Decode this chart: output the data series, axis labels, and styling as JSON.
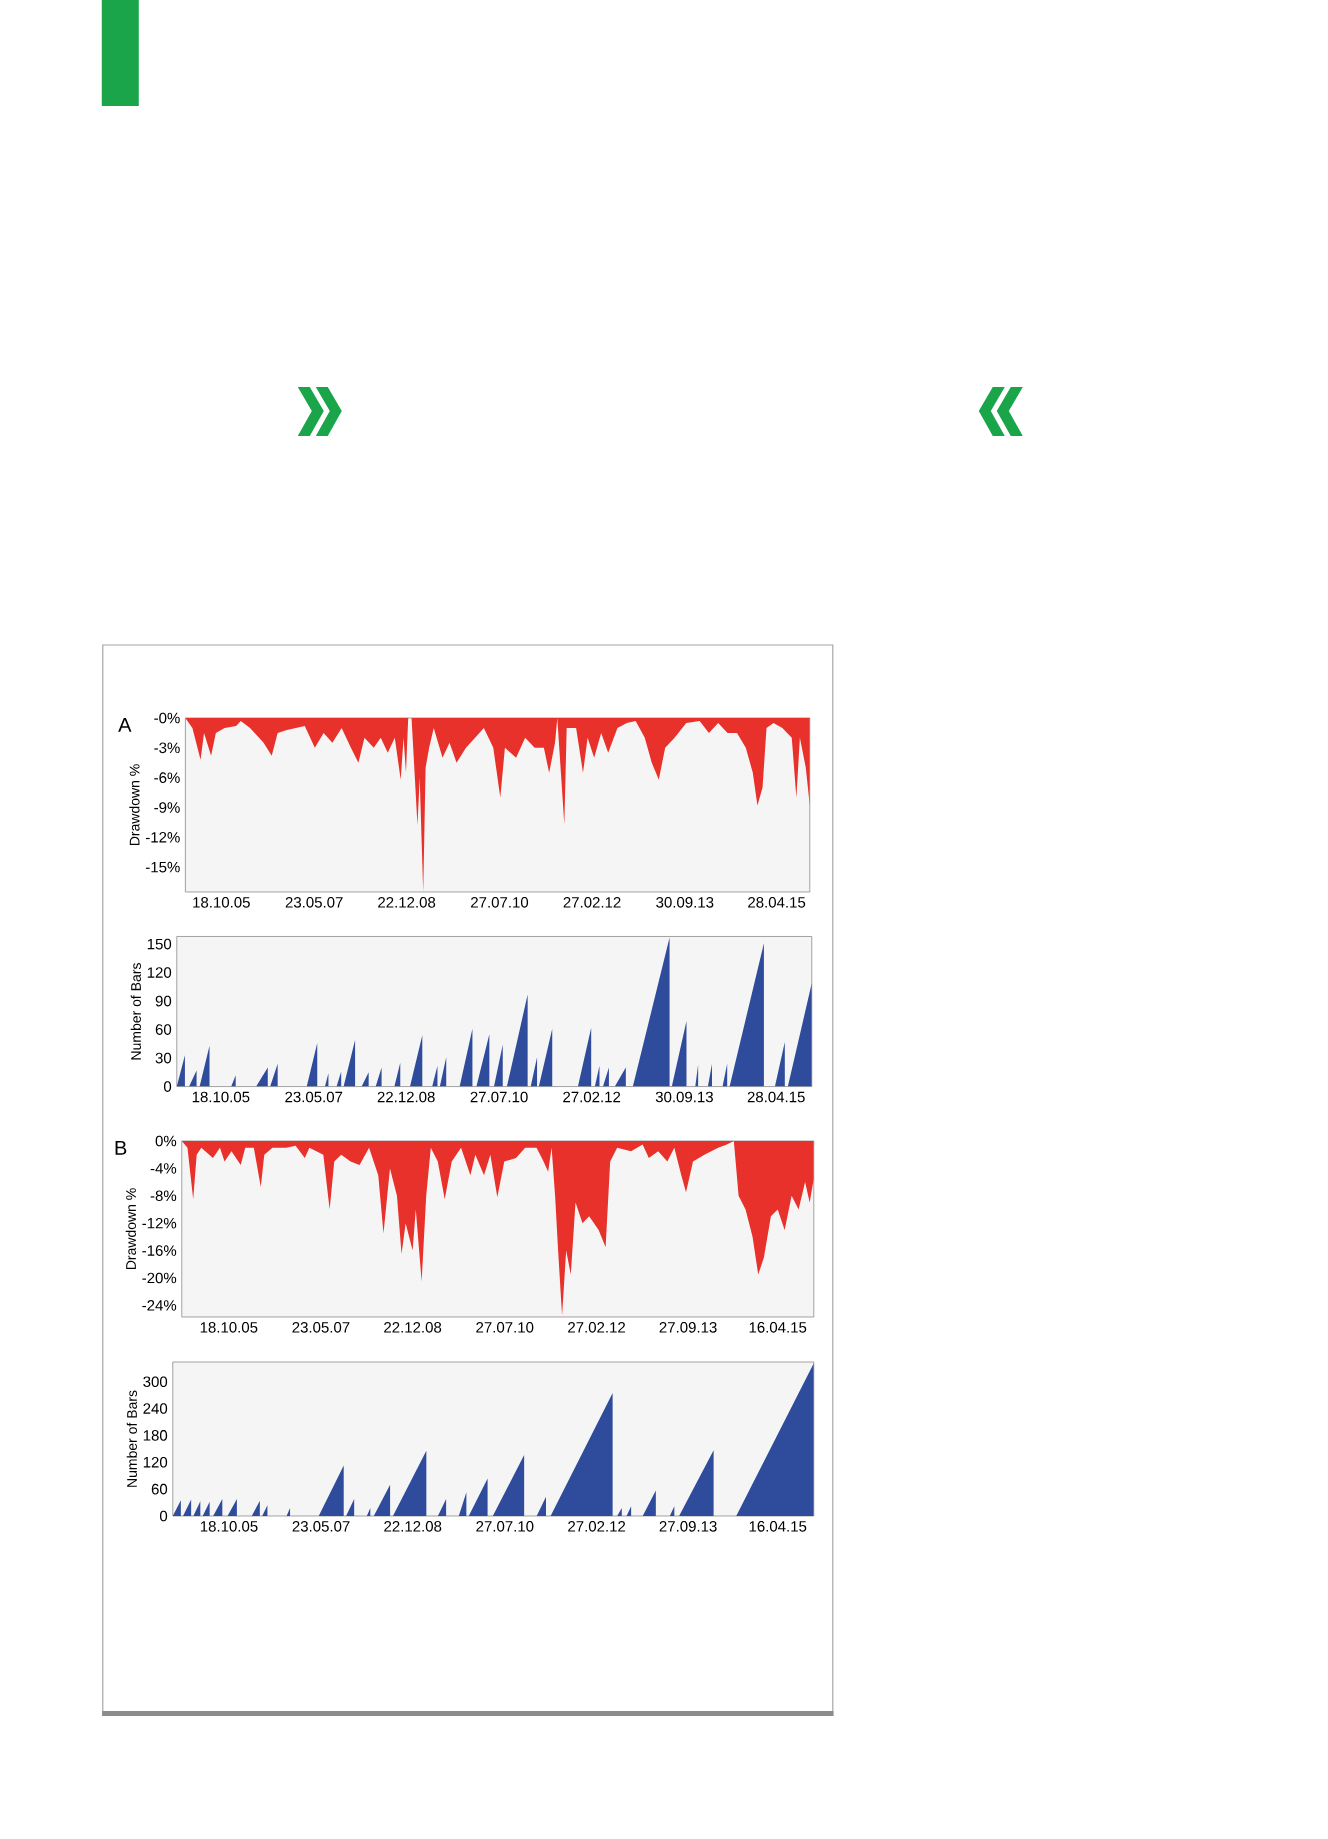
{
  "chart_data": [
    {
      "type": "area",
      "ylabel": "Drawdown %",
      "annotations": [
        "A"
      ],
      "color": "#e8312a",
      "xlim": [
        "2005-03-07",
        "2015-11-22"
      ],
      "ylim": [
        -17.5,
        0
      ],
      "xticks": [
        {
          "value": "2005-10-18",
          "label": "18.10.05"
        },
        {
          "value": "2007-05-23",
          "label": "23.05.07"
        },
        {
          "value": "2008-12-22",
          "label": "22.12.08"
        },
        {
          "value": "2010-07-27",
          "label": "27.07.10"
        },
        {
          "value": "2012-02-27",
          "label": "27.02.12"
        },
        {
          "value": "2013-09-30",
          "label": "30.09.13"
        },
        {
          "value": "2015-04-28",
          "label": "28.04.15"
        }
      ],
      "yticks": [
        {
          "value": 0,
          "label": "-0%"
        },
        {
          "value": -3,
          "label": "-3%"
        },
        {
          "value": -6,
          "label": "-6%"
        },
        {
          "value": -9,
          "label": "-9%"
        },
        {
          "value": -12,
          "label": "-12%"
        },
        {
          "value": -15,
          "label": "-15%"
        }
      ],
      "x": [
        "2005-03-07",
        "2005-04-20",
        "2005-06-10",
        "2005-07-02",
        "2005-08-15",
        "2005-09-14",
        "2005-11-08",
        "2006-01-19",
        "2006-02-17",
        "2006-04-16",
        "2006-07-10",
        "2006-08-30",
        "2006-10-06",
        "2006-12-03",
        "2007-03-25",
        "2007-05-27",
        "2007-07-21",
        "2007-09-14",
        "2007-11-11",
        "2008-01-08",
        "2008-02-24",
        "2008-04-02",
        "2008-05-30",
        "2008-07-13",
        "2008-08-26",
        "2008-10-09",
        "2008-11-15",
        "2008-12-03",
        "2008-12-18",
        "2009-01-01",
        "2009-01-22",
        "2009-02-28",
        "2009-03-14",
        "2009-04-05",
        "2009-04-20",
        "2009-05-12",
        "2009-06-10",
        "2009-08-04",
        "2009-09-17",
        "2009-10-31",
        "2009-12-29",
        "2010-02-24",
        "2010-04-20",
        "2010-06-18",
        "2010-08-01",
        "2010-08-30",
        "2010-11-08",
        "2011-01-04",
        "2011-03-04",
        "2011-05-01",
        "2011-06-03",
        "2011-07-10",
        "2011-07-24",
        "2011-09-06",
        "2011-09-21",
        "2011-11-19",
        "2012-01-01",
        "2012-01-30",
        "2012-03-11",
        "2012-04-24",
        "2012-06-07",
        "2012-08-04",
        "2012-10-02",
        "2012-11-26",
        "2013-01-22",
        "2013-03-07",
        "2013-04-20",
        "2013-05-30",
        "2013-07-28",
        "2013-10-09",
        "2014-01-01",
        "2014-02-28",
        "2014-04-27",
        "2014-06-25",
        "2014-08-23",
        "2014-10-17",
        "2014-11-30",
        "2014-12-29",
        "2015-01-30",
        "2015-02-24",
        "2015-04-09",
        "2015-06-03",
        "2015-08-01",
        "2015-08-30",
        "2015-09-21",
        "2015-10-28",
        "2015-11-22"
      ],
      "values": [
        0,
        -1,
        -4.2,
        -1.5,
        -3.8,
        -1.5,
        -1,
        -0.8,
        -0.3,
        -1,
        -2.5,
        -3.8,
        -1.5,
        -1.2,
        -0.8,
        -3,
        -1.5,
        -2.5,
        -1,
        -3,
        -4.5,
        -2,
        -3,
        -2,
        -3.5,
        -2,
        -6.2,
        -2,
        -5.5,
        0,
        0,
        -10.8,
        -6,
        -17.5,
        -5,
        -3,
        -1,
        -4,
        -2.5,
        -4.5,
        -3,
        -2,
        -1,
        -3,
        -8,
        -3,
        -4,
        -2,
        -3,
        -3,
        -5.5,
        -2.5,
        0,
        -10.7,
        -1,
        -1,
        -5.5,
        -2,
        -4,
        -1.5,
        -3.5,
        -1,
        -0.5,
        -0.3,
        -2,
        -4.5,
        -6.2,
        -3,
        -2,
        -0.5,
        -0.3,
        -1.5,
        -0.5,
        -1.5,
        -1.5,
        -3,
        -5.5,
        -8.8,
        -7,
        -1,
        -0.5,
        -1,
        -2,
        -8,
        -2,
        -5,
        -8.8
      ]
    },
    {
      "type": "area",
      "ylabel": "Number of Bars",
      "color": "#2f4b9c",
      "xlim": [
        "2005-01-15",
        "2015-12-07"
      ],
      "ylim": [
        0,
        158
      ],
      "xticks": [
        {
          "value": "2005-10-18",
          "label": "18.10.05"
        },
        {
          "value": "2007-05-23",
          "label": "23.05.07"
        },
        {
          "value": "2008-12-22",
          "label": "22.12.08"
        },
        {
          "value": "2010-07-27",
          "label": "27.07.10"
        },
        {
          "value": "2012-02-27",
          "label": "27.02.12"
        },
        {
          "value": "2013-09-30",
          "label": "30.09.13"
        },
        {
          "value": "2015-04-28",
          "label": "28.04.15"
        }
      ],
      "yticks": [
        0,
        30,
        60,
        90,
        120,
        150
      ],
      "x": [
        "2005-01-15",
        "2005-03-07",
        "2005-03-07",
        "2005-04-02",
        "2005-05-19",
        "2005-05-19",
        "2005-06-07",
        "2005-08-08",
        "2005-08-08",
        "2005-12-22",
        "2006-01-19",
        "2006-01-19",
        "2006-05-27",
        "2006-08-08",
        "2006-08-08",
        "2006-08-23",
        "2006-10-09",
        "2006-10-09",
        "2007-04-09",
        "2007-06-14",
        "2007-06-14",
        "2007-08-01",
        "2007-08-23",
        "2007-08-23",
        "2007-10-13",
        "2007-11-11",
        "2007-11-11",
        "2007-11-26",
        "2008-02-06",
        "2008-02-06",
        "2008-03-18",
        "2008-05-01",
        "2008-05-01",
        "2008-06-14",
        "2008-07-21",
        "2008-07-21",
        "2008-10-09",
        "2008-11-15",
        "2008-11-15",
        "2009-01-15",
        "2009-04-02",
        "2009-04-02",
        "2009-06-03",
        "2009-07-06",
        "2009-07-06",
        "2009-07-21",
        "2009-08-30",
        "2009-08-30",
        "2009-11-22",
        "2010-02-10",
        "2010-02-10",
        "2010-03-07",
        "2010-05-27",
        "2010-05-27",
        "2010-06-25",
        "2010-08-19",
        "2010-08-19",
        "2010-09-14",
        "2011-01-22",
        "2011-01-22",
        "2011-02-10",
        "2011-03-22",
        "2011-03-22",
        "2011-04-02",
        "2011-06-25",
        "2011-06-25",
        "2011-12-03",
        "2012-02-24",
        "2012-02-24",
        "2012-03-18",
        "2012-04-16",
        "2012-04-16",
        "2012-05-08",
        "2012-06-14",
        "2012-06-14",
        "2012-07-21",
        "2012-09-28",
        "2012-09-28",
        "2012-11-11",
        "2013-06-29",
        "2013-06-29",
        "2013-07-13",
        "2013-10-13",
        "2013-10-13",
        "2013-12-07",
        "2013-12-25",
        "2013-12-25",
        "2014-02-24",
        "2014-03-22",
        "2014-03-22",
        "2014-05-27",
        "2014-06-25",
        "2014-06-25",
        "2014-07-10",
        "2015-02-10",
        "2015-02-10",
        "2015-04-20",
        "2015-06-21",
        "2015-06-21",
        "2015-07-10",
        "2015-12-07"
      ],
      "values": [
        0,
        33,
        0,
        0,
        17,
        0,
        0,
        43,
        0,
        0,
        12,
        0,
        0,
        20,
        0,
        0,
        24,
        0,
        0,
        46,
        0,
        0,
        14,
        0,
        0,
        16,
        0,
        0,
        49,
        0,
        0,
        15,
        0,
        0,
        20,
        0,
        0,
        25,
        0,
        0,
        54,
        0,
        0,
        22,
        0,
        0,
        31,
        0,
        0,
        61,
        0,
        0,
        55,
        0,
        0,
        44,
        0,
        0,
        97,
        0,
        0,
        31,
        0,
        0,
        61,
        0,
        0,
        62,
        0,
        0,
        22,
        0,
        0,
        20,
        0,
        0,
        20,
        0,
        0,
        157,
        0,
        0,
        69,
        0,
        0,
        23,
        0,
        0,
        24,
        0,
        0,
        24,
        0,
        0,
        151,
        0,
        0,
        47,
        0,
        0,
        109
      ]
    },
    {
      "type": "area",
      "ylabel": "Drawdown %",
      "annotations": [
        "B"
      ],
      "color": "#e8312a",
      "xlim": [
        "2004-12-25",
        "2015-11-30"
      ],
      "ylim": [
        -25.7,
        0
      ],
      "xticks": [
        {
          "value": "2005-10-18",
          "label": "18.10.05"
        },
        {
          "value": "2007-05-23",
          "label": "23.05.07"
        },
        {
          "value": "2008-12-22",
          "label": "22.12.08"
        },
        {
          "value": "2010-07-27",
          "label": "27.07.10"
        },
        {
          "value": "2012-02-27",
          "label": "27.02.12"
        },
        {
          "value": "2013-09-27",
          "label": "27.09.13"
        },
        {
          "value": "2015-04-16",
          "label": "16.04.15"
        }
      ],
      "yticks": [
        {
          "value": 0,
          "label": "0%"
        },
        {
          "value": -4,
          "label": "-4%"
        },
        {
          "value": -8,
          "label": "-8%"
        },
        {
          "value": -12,
          "label": "-12%"
        },
        {
          "value": -16,
          "label": "-16%"
        },
        {
          "value": -20,
          "label": "-20%"
        },
        {
          "value": -24,
          "label": "-24%"
        }
      ],
      "x": [
        "2004-12-25",
        "2005-01-30",
        "2005-03-07",
        "2005-03-29",
        "2005-04-27",
        "2005-07-10",
        "2005-08-23",
        "2005-09-21",
        "2005-11-04",
        "2006-01-01",
        "2006-01-30",
        "2006-03-25",
        "2006-05-08",
        "2006-05-30",
        "2006-07-21",
        "2006-10-17",
        "2006-12-14",
        "2007-02-10",
        "2007-03-11",
        "2007-06-07",
        "2007-07-17",
        "2007-08-15",
        "2007-09-28",
        "2007-11-26",
        "2008-01-22",
        "2008-03-22",
        "2008-05-19",
        "2008-06-21",
        "2008-08-01",
        "2008-09-14",
        "2008-10-13",
        "2008-11-08",
        "2008-12-22",
        "2009-01-11",
        "2009-02-17",
        "2009-03-18",
        "2009-04-16",
        "2009-05-30",
        "2009-07-13",
        "2009-08-26",
        "2009-10-24",
        "2009-12-22",
        "2010-01-22",
        "2010-03-18",
        "2010-04-27",
        "2010-06-10",
        "2010-07-24",
        "2010-10-06",
        "2010-12-03",
        "2011-02-13",
        "2011-03-29",
        "2011-04-27",
        "2011-05-19",
        "2011-06-10",
        "2011-06-29",
        "2011-07-24",
        "2011-08-19",
        "2011-09-17",
        "2011-10-17",
        "2011-11-30",
        "2012-01-11",
        "2012-03-11",
        "2012-04-24",
        "2012-05-23",
        "2012-07-06",
        "2012-10-02",
        "2012-12-14",
        "2013-01-22",
        "2013-03-22",
        "2013-05-19",
        "2013-07-02",
        "2013-08-15",
        "2013-09-14",
        "2013-10-28",
        "2014-01-08",
        "2014-04-05",
        "2014-05-30",
        "2014-07-13",
        "2014-08-12",
        "2014-09-25",
        "2014-11-08",
        "2014-12-14",
        "2015-01-19",
        "2015-03-04",
        "2015-04-16",
        "2015-05-30",
        "2015-07-13",
        "2015-08-26",
        "2015-10-06",
        "2015-11-04",
        "2015-11-30"
      ],
      "values": [
        0,
        -1,
        -8.5,
        -2,
        -1,
        -2.5,
        -1,
        -3,
        -1.5,
        -3.5,
        -1,
        -1,
        -6.7,
        -2,
        -1,
        -1,
        -0.7,
        -2.5,
        -1,
        -2,
        -10,
        -3,
        -2,
        -3,
        -3.5,
        -1,
        -5,
        -13.5,
        -4,
        -8,
        -16.5,
        -12,
        -16,
        -10,
        -20.5,
        -8,
        -1,
        -3,
        -8.5,
        -3,
        -1,
        -5,
        -2,
        -5,
        -2,
        -8.2,
        -3,
        -2.5,
        -1,
        -1,
        -3,
        -4.5,
        -1,
        -8,
        -16,
        -25.5,
        -16,
        -19.5,
        -9,
        -12,
        -11,
        -13,
        -15.5,
        -3,
        -1,
        -1.5,
        -0.5,
        -2.5,
        -1.5,
        -3,
        -1,
        -5,
        -7.5,
        -3,
        -2,
        -1,
        -0.5,
        0,
        -8,
        -10,
        -14,
        -19.5,
        -17,
        -11,
        -10,
        -13,
        -8,
        -10,
        -6,
        -9,
        -5.5
      ]
    },
    {
      "type": "area",
      "ylabel": "Number of Bars",
      "color": "#2f4b9c",
      "xlim": [
        "2004-10-28",
        "2015-11-30"
      ],
      "ylim": [
        0,
        344
      ],
      "xticks": [
        {
          "value": "2005-10-18",
          "label": "18.10.05"
        },
        {
          "value": "2007-05-23",
          "label": "23.05.07"
        },
        {
          "value": "2008-12-22",
          "label": "22.12.08"
        },
        {
          "value": "2010-07-27",
          "label": "27.07.10"
        },
        {
          "value": "2012-02-27",
          "label": "27.02.12"
        },
        {
          "value": "2013-09-27",
          "label": "27.09.13"
        },
        {
          "value": "2015-04-16",
          "label": "16.04.15"
        }
      ],
      "yticks": [
        0,
        60,
        120,
        180,
        240,
        300
      ],
      "x": [
        "2004-10-28",
        "2004-12-18",
        "2004-12-18",
        "2005-01-01",
        "2005-02-21",
        "2005-02-21",
        "2005-03-07",
        "2005-04-20",
        "2005-04-20",
        "2005-05-05",
        "2005-06-18",
        "2005-06-18",
        "2005-07-10",
        "2005-09-06",
        "2005-09-06",
        "2005-10-09",
        "2005-12-07",
        "2005-12-07",
        "2006-03-11",
        "2006-05-01",
        "2006-05-01",
        "2006-05-16",
        "2006-06-18",
        "2006-06-18",
        "2006-10-17",
        "2006-11-08",
        "2006-11-08",
        "2007-05-08",
        "2007-10-13",
        "2007-10-13",
        "2007-10-28",
        "2007-12-18",
        "2007-12-18",
        "2008-03-07",
        "2008-03-29",
        "2008-03-29",
        "2008-04-20",
        "2008-08-01",
        "2008-08-01",
        "2008-08-19",
        "2009-03-18",
        "2009-03-18",
        "2009-05-30",
        "2009-07-21",
        "2009-07-21",
        "2009-10-09",
        "2009-11-26",
        "2009-11-26",
        "2009-12-11",
        "2010-04-09",
        "2010-04-09",
        "2010-05-12",
        "2010-11-26",
        "2010-11-26",
        "2011-02-13",
        "2011-04-13",
        "2011-04-13",
        "2011-05-12",
        "2012-06-07",
        "2012-06-07",
        "2012-07-06",
        "2012-08-04",
        "2012-08-04",
        "2012-09-03",
        "2012-10-02",
        "2012-10-02",
        "2012-12-14",
        "2013-03-07",
        "2013-03-07",
        "2013-06-03",
        "2013-07-02",
        "2013-07-02",
        "2013-08-01",
        "2014-03-07",
        "2014-03-07",
        "2014-07-28",
        "2015-11-30"
      ],
      "values": [
        0,
        35,
        0,
        0,
        37,
        0,
        0,
        33,
        0,
        0,
        32,
        0,
        0,
        38,
        0,
        0,
        38,
        0,
        0,
        34,
        0,
        0,
        24,
        0,
        0,
        18,
        0,
        0,
        113,
        0,
        0,
        38,
        0,
        0,
        18,
        0,
        0,
        70,
        0,
        0,
        146,
        0,
        0,
        38,
        0,
        0,
        53,
        0,
        0,
        84,
        0,
        0,
        136,
        0,
        0,
        43,
        0,
        0,
        275,
        0,
        0,
        18,
        0,
        0,
        22,
        0,
        0,
        57,
        0,
        0,
        22,
        0,
        0,
        147,
        0,
        0,
        341
      ]
    }
  ]
}
